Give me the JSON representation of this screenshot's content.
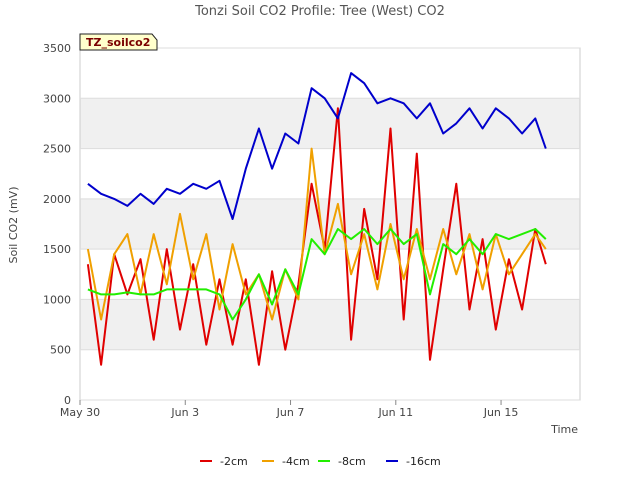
{
  "chart_data": {
    "type": "line",
    "title": "Tonzi Soil CO2 Profile: Tree (West) CO2",
    "xlabel": "Time",
    "ylabel": "Soil CO2 (mV)",
    "badge": "TZ_soilco2",
    "xlim": [
      0,
      19
    ],
    "ylim": [
      0,
      3500
    ],
    "yticks": [
      0,
      500,
      1000,
      1500,
      2000,
      2500,
      3000,
      3500
    ],
    "xticks": [
      {
        "value": 0,
        "label": "May 30"
      },
      {
        "value": 4,
        "label": "Jun 3"
      },
      {
        "value": 8,
        "label": "Jun 7"
      },
      {
        "value": 12,
        "label": "Jun 11"
      },
      {
        "value": 16,
        "label": "Jun 15"
      }
    ],
    "x": [
      0.3,
      0.8,
      1.3,
      1.8,
      2.3,
      2.8,
      3.3,
      3.8,
      4.3,
      4.8,
      5.3,
      5.8,
      6.3,
      6.8,
      7.3,
      7.8,
      8.3,
      8.8,
      9.3,
      9.8,
      10.3,
      10.8,
      11.3,
      11.8,
      12.3,
      12.8,
      13.3,
      13.8,
      14.3,
      14.8,
      15.3,
      15.8,
      16.3,
      16.8,
      17.3,
      17.7
    ],
    "series": [
      {
        "name": "-2cm",
        "color": "#e00000",
        "values": [
          1350,
          350,
          1450,
          1050,
          1400,
          600,
          1500,
          700,
          1350,
          550,
          1200,
          550,
          1200,
          350,
          1280,
          500,
          1150,
          2150,
          1500,
          2900,
          600,
          1900,
          1200,
          2700,
          800,
          2450,
          400,
          1300,
          2150,
          900,
          1600,
          700,
          1400,
          900,
          1700,
          1350
        ]
      },
      {
        "name": "-4cm",
        "color": "#f0a000",
        "values": [
          1500,
          800,
          1450,
          1650,
          1050,
          1650,
          1150,
          1850,
          1200,
          1650,
          900,
          1550,
          1050,
          1250,
          800,
          1300,
          1000,
          2500,
          1450,
          1950,
          1250,
          1650,
          1100,
          1750,
          1200,
          1700,
          1200,
          1700,
          1250,
          1650,
          1100,
          1650,
          1250,
          1450,
          1650,
          1500
        ]
      },
      {
        "name": "-8cm",
        "color": "#22ee00",
        "values": [
          1100,
          1050,
          1050,
          1070,
          1050,
          1050,
          1100,
          1100,
          1100,
          1100,
          1050,
          800,
          1000,
          1250,
          950,
          1300,
          1050,
          1600,
          1450,
          1700,
          1600,
          1700,
          1550,
          1700,
          1550,
          1650,
          1050,
          1550,
          1450,
          1600,
          1450,
          1650,
          1600,
          1650,
          1700,
          1600
        ]
      },
      {
        "name": "-16cm",
        "color": "#0000cc",
        "values": [
          2150,
          2050,
          2000,
          1930,
          2050,
          1950,
          2100,
          2050,
          2150,
          2100,
          2180,
          1800,
          2300,
          2700,
          2300,
          2650,
          2550,
          3100,
          3000,
          2800,
          3250,
          3150,
          2950,
          3000,
          2950,
          2800,
          2950,
          2650,
          2750,
          2900,
          2700,
          2900,
          2800,
          2650,
          2800,
          2500
        ]
      }
    ],
    "legend_position": "bottom"
  }
}
